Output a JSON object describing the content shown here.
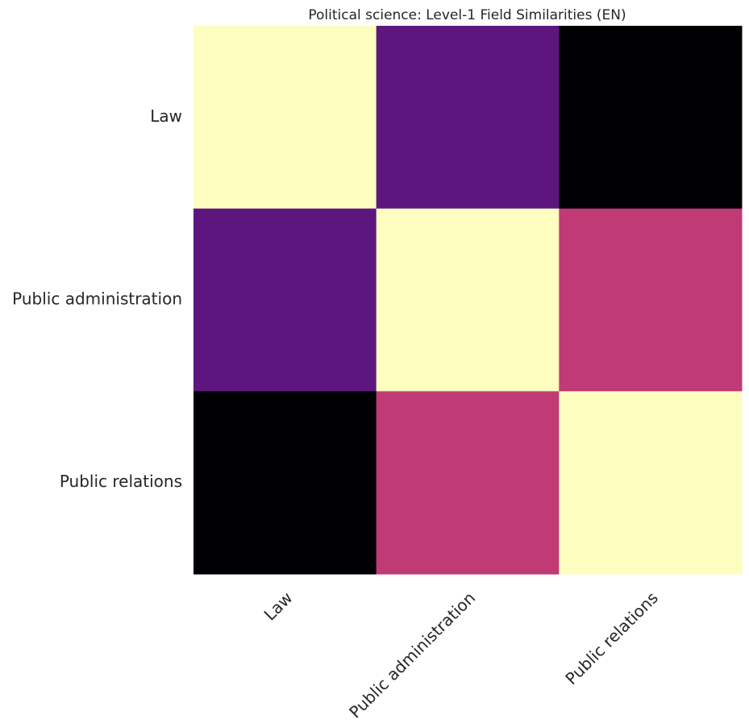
{
  "chart_data": {
    "type": "heatmap",
    "title": "Political science: Level-1 Field Similarities (EN)",
    "x_categories": [
      "Law",
      "Public administration",
      "Public relations"
    ],
    "y_categories": [
      "Law",
      "Public administration",
      "Public relations"
    ],
    "values": [
      [
        1.0,
        0.33,
        0.0
      ],
      [
        0.33,
        1.0,
        0.55
      ],
      [
        0.0,
        0.55,
        1.0
      ]
    ],
    "colormap": "magma",
    "colorbar": false,
    "x_tick_rotation_deg": 45,
    "grid": false
  }
}
